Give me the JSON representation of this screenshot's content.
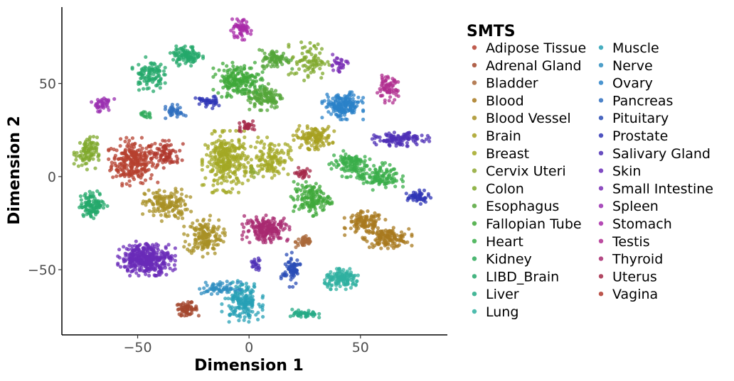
{
  "chart_data": {
    "type": "scatter",
    "xlabel": "Dimension 1",
    "ylabel": "Dimension 2",
    "xlim": [
      -84,
      89
    ],
    "ylim": [
      -85,
      91
    ],
    "xticks": [
      -50,
      0,
      50
    ],
    "yticks": [
      -50,
      0,
      50
    ],
    "x_tick_labels": [
      "−50",
      "0",
      "50"
    ],
    "y_tick_labels": [
      "−50",
      "0",
      "50"
    ],
    "grid": false,
    "legend": {
      "title": "SMTS",
      "placement": "right",
      "columns": 2
    },
    "series": [
      {
        "name": "Adipose Tissue",
        "color": "#b5402f",
        "clusters": [
          {
            "cx": -52,
            "cy": 8,
            "sx": 6,
            "sy": 7,
            "n": 260
          }
        ]
      },
      {
        "name": "Adrenal Gland",
        "color": "#a3462c",
        "clusters": [
          {
            "cx": -28,
            "cy": -71,
            "sx": 3,
            "sy": 2,
            "n": 60
          }
        ]
      },
      {
        "name": "Bladder",
        "color": "#a9683a",
        "clusters": [
          {
            "cx": 25,
            "cy": -35,
            "sx": 2.5,
            "sy": 2,
            "n": 40
          }
        ]
      },
      {
        "name": "Blood",
        "color": "#a8791f",
        "clusters": [
          {
            "cx": 52,
            "cy": -25,
            "sx": 5,
            "sy": 3.5,
            "n": 110
          },
          {
            "cx": 62,
            "cy": -33,
            "sx": 6,
            "sy": 3,
            "n": 140
          }
        ]
      },
      {
        "name": "Blood Vessel",
        "color": "#a89025",
        "clusters": [
          {
            "cx": -20,
            "cy": -32,
            "sx": 5,
            "sy": 6,
            "n": 160
          },
          {
            "cx": -37,
            "cy": -15,
            "sx": 6,
            "sy": 5,
            "n": 150
          }
        ]
      },
      {
        "name": "Brain",
        "color": "#a7a020",
        "clusters": [
          {
            "cx": 29,
            "cy": 21,
            "sx": 5,
            "sy": 3.5,
            "n": 120
          }
        ]
      },
      {
        "name": "Breast",
        "color": "#a3a824",
        "clusters": [
          {
            "cx": -10,
            "cy": 8,
            "sx": 6,
            "sy": 9,
            "n": 300
          },
          {
            "cx": 10,
            "cy": 10,
            "sx": 5,
            "sy": 6,
            "n": 120
          }
        ]
      },
      {
        "name": "Cervix Uteri",
        "color": "#8fa832",
        "clusters": [
          {
            "cx": 2,
            "cy": 2,
            "sx": 2,
            "sy": 2,
            "n": 10
          }
        ]
      },
      {
        "name": "Colon",
        "color": "#7fa82c",
        "clusters": [
          {
            "cx": -73,
            "cy": 13,
            "sx": 3,
            "sy": 5,
            "n": 90
          },
          {
            "cx": 27,
            "cy": 62,
            "sx": 5,
            "sy": 6,
            "n": 80
          }
        ]
      },
      {
        "name": "Esophagus",
        "color": "#54a63a",
        "clusters": [
          {
            "cx": 7,
            "cy": 43,
            "sx": 5,
            "sy": 4,
            "n": 120
          },
          {
            "cx": 12,
            "cy": 63,
            "sx": 4,
            "sy": 3,
            "n": 80
          }
        ]
      },
      {
        "name": "Fallopian Tube",
        "color": "#3fa83a",
        "clusters": [
          {
            "cx": -5,
            "cy": 52,
            "sx": 6,
            "sy": 5,
            "n": 180
          },
          {
            "cx": 28,
            "cy": -12,
            "sx": 5,
            "sy": 5,
            "n": 140
          }
        ]
      },
      {
        "name": "Heart",
        "color": "#3aae4a",
        "clusters": [
          {
            "cx": 45,
            "cy": 7,
            "sx": 5,
            "sy": 4,
            "n": 110
          },
          {
            "cx": 58,
            "cy": 0,
            "sx": 6,
            "sy": 4,
            "n": 120
          }
        ]
      },
      {
        "name": "Kidney",
        "color": "#2eaa5a",
        "clusters": [
          {
            "cx": -47,
            "cy": 33,
            "sx": 2,
            "sy": 1,
            "n": 15
          }
        ]
      },
      {
        "name": "LIBD_Brain",
        "color": "#24a86b",
        "clusters": [
          {
            "cx": -70,
            "cy": -15,
            "sx": 3.5,
            "sy": 4,
            "n": 110
          },
          {
            "cx": -45,
            "cy": 55,
            "sx": 4,
            "sy": 5,
            "n": 100
          },
          {
            "cx": -28,
            "cy": 65,
            "sx": 4,
            "sy": 3,
            "n": 100
          }
        ]
      },
      {
        "name": "Liver",
        "color": "#26aa86",
        "clusters": [
          {
            "cx": 25,
            "cy": -74,
            "sx": 3.5,
            "sy": 1.5,
            "n": 45
          }
        ]
      },
      {
        "name": "Lung",
        "color": "#2fb0a0",
        "clusters": [
          {
            "cx": 42,
            "cy": -55,
            "sx": 5,
            "sy": 3,
            "n": 130
          }
        ]
      },
      {
        "name": "Muscle",
        "color": "#27a0b5",
        "clusters": [
          {
            "cx": -3,
            "cy": -67,
            "sx": 5,
            "sy": 6,
            "n": 170
          }
        ]
      },
      {
        "name": "Nerve",
        "color": "#2f8ec0",
        "clusters": [
          {
            "cx": -13,
            "cy": -60,
            "sx": 5,
            "sy": 2,
            "n": 60
          }
        ]
      },
      {
        "name": "Ovary",
        "color": "#2b82c8",
        "clusters": [
          {
            "cx": 42,
            "cy": 38,
            "sx": 5,
            "sy": 4,
            "n": 180
          }
        ]
      },
      {
        "name": "Pancreas",
        "color": "#2f6fbf",
        "clusters": [
          {
            "cx": -33,
            "cy": 35,
            "sx": 2.5,
            "sy": 2,
            "n": 40
          }
        ]
      },
      {
        "name": "Pituitary",
        "color": "#2a4cb5",
        "clusters": [
          {
            "cx": 19,
            "cy": -50,
            "sx": 2.5,
            "sy": 5,
            "n": 70
          }
        ]
      },
      {
        "name": "Prostate",
        "color": "#2f35b5",
        "clusters": [
          {
            "cx": 76,
            "cy": -11,
            "sx": 3,
            "sy": 2,
            "n": 50
          },
          {
            "cx": -19,
            "cy": 40,
            "sx": 3,
            "sy": 2,
            "n": 40
          }
        ]
      },
      {
        "name": "Salivary Gland",
        "color": "#4d2fb5",
        "clusters": [
          {
            "cx": 68,
            "cy": 20,
            "sx": 7,
            "sy": 2,
            "n": 110
          },
          {
            "cx": 3,
            "cy": -47,
            "sx": 1.5,
            "sy": 2,
            "n": 20
          }
        ]
      },
      {
        "name": "Skin",
        "color": "#6a2bb8",
        "clusters": [
          {
            "cx": -46,
            "cy": -44,
            "sx": 7,
            "sy": 5,
            "n": 380
          }
        ]
      },
      {
        "name": "Small Intestine",
        "color": "#7a2fb5",
        "clusters": [
          {
            "cx": 40,
            "cy": 60,
            "sx": 2.5,
            "sy": 3,
            "n": 30
          }
        ]
      },
      {
        "name": "Spleen",
        "color": "#9a2fb0",
        "clusters": [
          {
            "cx": -66,
            "cy": 39,
            "sx": 3,
            "sy": 2.5,
            "n": 40
          }
        ]
      },
      {
        "name": "Stomach",
        "color": "#a82aa8",
        "clusters": [
          {
            "cx": -4,
            "cy": 79,
            "sx": 3,
            "sy": 3,
            "n": 60
          }
        ]
      },
      {
        "name": "Testis",
        "color": "#b02d8f",
        "clusters": [
          {
            "cx": 62,
            "cy": 47,
            "sx": 3,
            "sy": 4,
            "n": 70
          }
        ]
      },
      {
        "name": "Thyroid",
        "color": "#a82a70",
        "clusters": [
          {
            "cx": 8,
            "cy": -28,
            "sx": 6,
            "sy": 4,
            "n": 190
          }
        ]
      },
      {
        "name": "Uterus",
        "color": "#a42848",
        "clusters": [
          {
            "cx": 24,
            "cy": 2,
            "sx": 2,
            "sy": 1.5,
            "n": 25
          },
          {
            "cx": -1,
            "cy": 27,
            "sx": 2.5,
            "sy": 2,
            "n": 30
          }
        ]
      },
      {
        "name": "Vagina",
        "color": "#b0382e",
        "clusters": [
          {
            "cx": -37,
            "cy": 12,
            "sx": 4,
            "sy": 4,
            "n": 80
          }
        ]
      }
    ]
  }
}
